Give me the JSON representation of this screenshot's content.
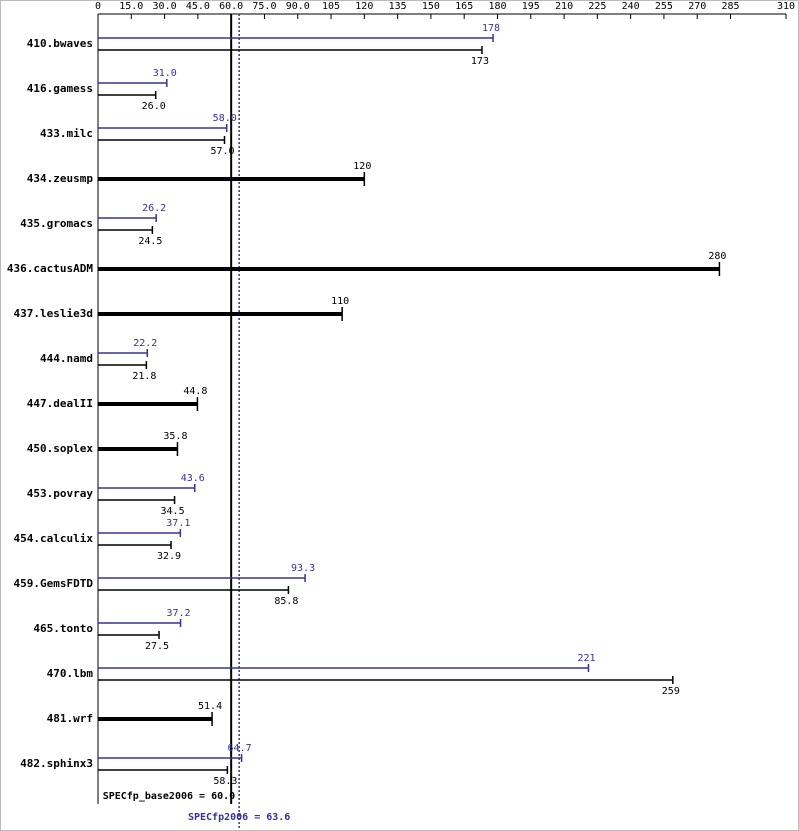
{
  "chart_data": {
    "type": "bar",
    "categories": [
      "410.bwaves",
      "416.gamess",
      "433.milc",
      "434.zeusmp",
      "435.gromacs",
      "436.cactusADM",
      "437.leslie3d",
      "444.namd",
      "447.dealII",
      "450.soplex",
      "453.povray",
      "454.calculix",
      "459.GemsFDTD",
      "465.tonto",
      "470.lbm",
      "481.wrf",
      "482.sphinx3"
    ],
    "series": [
      {
        "name": "base",
        "color": "#000000",
        "values": [
          173,
          26,
          57,
          120,
          24.5,
          280,
          110,
          21.8,
          44.8,
          35.8,
          34.5,
          32.9,
          85.8,
          27.5,
          259,
          51.4,
          58.3
        ],
        "value_labels": [
          "173",
          "26.0",
          "57.0",
          "120",
          "24.5",
          "280",
          "110",
          "21.8",
          "44.8",
          "35.8",
          "34.5",
          "32.9",
          "85.8",
          "27.5",
          "259",
          "51.4",
          "58.3"
        ]
      },
      {
        "name": "peak",
        "color": "#333399",
        "values": [
          178,
          31,
          58,
          null,
          26.2,
          null,
          null,
          22.2,
          null,
          null,
          43.6,
          37.1,
          93.3,
          37.2,
          221,
          null,
          64.7
        ],
        "value_labels": [
          "178",
          "31.0",
          "58.0",
          null,
          "26.2",
          null,
          null,
          "22.2",
          null,
          null,
          "43.6",
          "37.1",
          "93.3",
          "37.2",
          "221",
          null,
          "64.7"
        ]
      }
    ],
    "xlim": [
      0,
      310
    ],
    "xticks": [
      0,
      {
        "value": 15,
        "label": "15.0"
      },
      {
        "value": 30,
        "label": "30.0"
      },
      {
        "value": 45,
        "label": "45.0"
      },
      {
        "value": 60,
        "label": "60.0"
      },
      {
        "value": 75,
        "label": "75.0"
      },
      {
        "value": 90,
        "label": "90.0"
      },
      105,
      120,
      135,
      150,
      165,
      180,
      195,
      210,
      225,
      240,
      255,
      270,
      285,
      310
    ],
    "base_mean": {
      "value": 60,
      "label": "SPECfp_base2006 = 60.0"
    },
    "peak_mean": {
      "value": 63.6,
      "label": "SPECfp2006 = 63.6"
    }
  }
}
